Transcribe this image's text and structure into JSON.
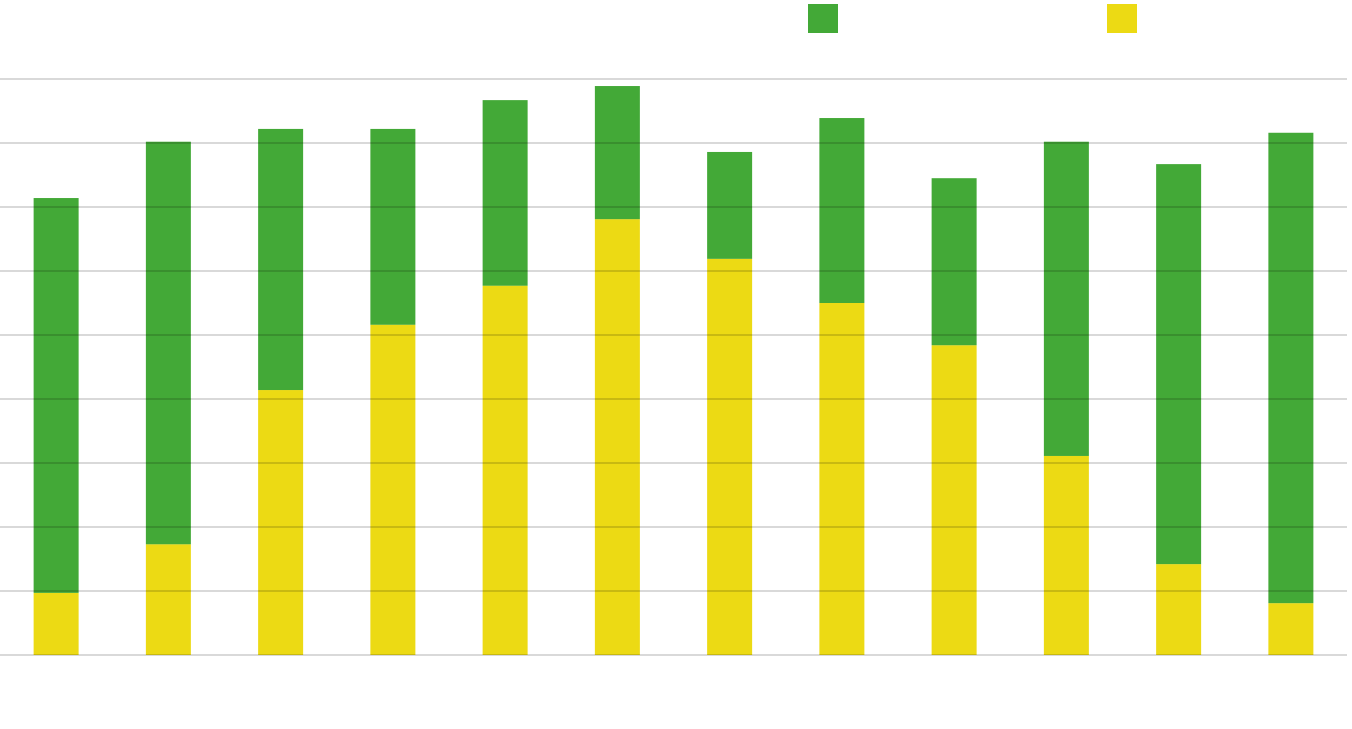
{
  "chart_data": {
    "type": "stacked_bar",
    "categories": [
      null,
      null,
      null,
      null,
      null,
      null,
      null,
      null,
      null,
      null,
      null,
      null
    ],
    "series": [
      {
        "color": "#ecda14",
        "values": [
          0.97,
          1.73,
          4.14,
          5.16,
          5.77,
          6.81,
          6.19,
          5.5,
          4.84,
          3.11,
          1.42,
          0.81
        ]
      },
      {
        "color": "#43a937",
        "values": [
          6.17,
          6.29,
          4.08,
          3.06,
          2.9,
          2.08,
          1.67,
          2.89,
          2.61,
          4.91,
          6.25,
          7.35
        ]
      }
    ],
    "ylim": [
      0,
      9
    ],
    "yticks": [
      0,
      1,
      2,
      3,
      4,
      5,
      6,
      7,
      8,
      9
    ],
    "grid": true,
    "legend": "top"
  }
}
